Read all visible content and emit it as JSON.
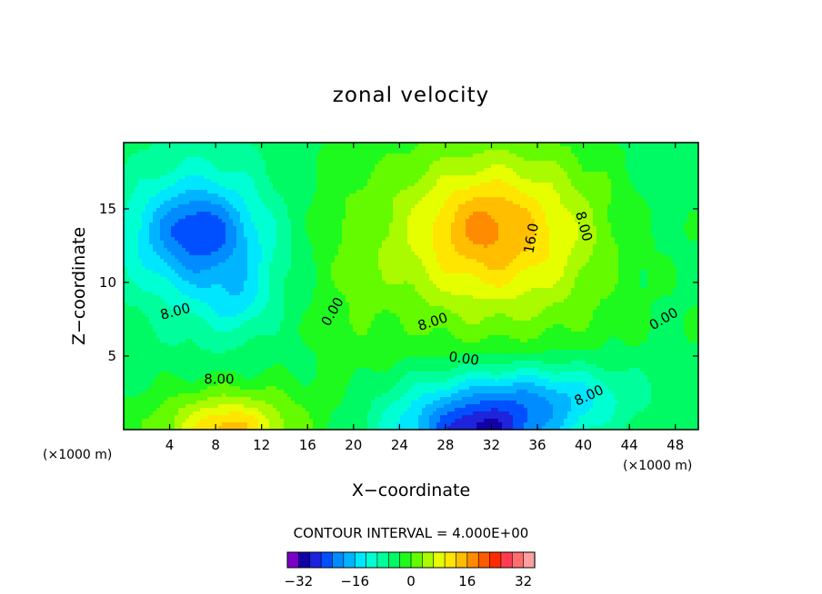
{
  "chart_data": {
    "type": "heatmap",
    "title": "zonal velocity",
    "xlabel": "X−coordinate",
    "ylabel": "Z−coordinate",
    "x_unit": "(×1000 m)",
    "z_unit": "(×1000 m)",
    "xlim": [
      0,
      50
    ],
    "ylim": [
      0,
      19.5
    ],
    "x_ticks": [
      4,
      8,
      12,
      16,
      20,
      24,
      28,
      32,
      36,
      40,
      44,
      48
    ],
    "x_tick_labels": [
      "4",
      "8",
      "12",
      "16",
      "20",
      "24",
      "28",
      "32",
      "36",
      "40",
      "44",
      "48"
    ],
    "y_ticks": [
      5,
      10,
      15
    ],
    "y_tick_labels": [
      "5",
      "10",
      "15"
    ],
    "contour_interval_text": "CONTOUR INTERVAL = 4.000E+00",
    "contour_interval": 4,
    "contour_labels": [
      {
        "text": "8.00",
        "x": 4.5,
        "z": 8.0,
        "angle": 15
      },
      {
        "text": "8.00",
        "x": 8.3,
        "z": 3.4,
        "angle": 0
      },
      {
        "text": "0.00",
        "x": 18.2,
        "z": 8.0,
        "angle": 60
      },
      {
        "text": "8.00",
        "x": 26.9,
        "z": 7.3,
        "angle": 18
      },
      {
        "text": "0.00",
        "x": 29.6,
        "z": 4.8,
        "angle": -8
      },
      {
        "text": "16.0",
        "x": 35.5,
        "z": 13.0,
        "angle": 80
      },
      {
        "text": "8.00",
        "x": 40.0,
        "z": 13.8,
        "angle": -75
      },
      {
        "text": "0.00",
        "x": 47.0,
        "z": 7.5,
        "angle": 30
      },
      {
        "text": "8.00",
        "x": 40.5,
        "z": 2.3,
        "angle": 25
      }
    ],
    "colorbar": {
      "min": -36,
      "max": 36,
      "step": 4,
      "tick_values": [
        -32,
        -16,
        0,
        16,
        32
      ],
      "tick_labels": [
        "−32",
        "−16",
        "0",
        "16",
        "32"
      ],
      "colors": [
        "#7a00c8",
        "#1200a8",
        "#1e24dc",
        "#0050ff",
        "#008cff",
        "#00b4ff",
        "#00e6ff",
        "#00ffd2",
        "#00ff9c",
        "#00fa64",
        "#1efa1e",
        "#64fa00",
        "#aafa00",
        "#e6ff00",
        "#ffe600",
        "#ffbe00",
        "#ff8c00",
        "#ff5a00",
        "#ff2a00",
        "#ff3c50",
        "#ff6e6e",
        "#ffa0a0"
      ]
    },
    "features": [
      {
        "x": 6,
        "z": 13.2,
        "amp": -18,
        "sx": 4.5,
        "sz": 3.0
      },
      {
        "x": 6.5,
        "z": 13.8,
        "amp": -6,
        "sx": 2.3,
        "sz": 1.5
      },
      {
        "x": 10,
        "z": 8.5,
        "amp": -5,
        "sx": 1.8,
        "sz": 1.2
      },
      {
        "x": 10,
        "z": 10.5,
        "amp": -4,
        "sx": 3.0,
        "sz": 2.5
      },
      {
        "x": 32,
        "z": 13.5,
        "amp": 17,
        "sx": 6.0,
        "sz": 3.8
      },
      {
        "x": 31.5,
        "z": 14.0,
        "amp": 4,
        "sx": 2.5,
        "sz": 1.8
      },
      {
        "x": 9,
        "z": 0.2,
        "amp": 20,
        "sx": 4.5,
        "sz": 2.0
      },
      {
        "x": 9,
        "z": 0.0,
        "amp": 6,
        "sx": 2.0,
        "sz": 0.8
      },
      {
        "x": 31,
        "z": 0.3,
        "amp": -26,
        "sx": 5.5,
        "sz": 2.2
      },
      {
        "x": 31,
        "z": 0.0,
        "amp": -6,
        "sx": 2.5,
        "sz": 0.8
      },
      {
        "x": 38,
        "z": 2.5,
        "amp": -10,
        "sx": 5.0,
        "sz": 1.5
      },
      {
        "x": 20,
        "z": 9,
        "amp": 2,
        "sx": 2.0,
        "sz": 8.0
      },
      {
        "x": 46,
        "z": 14,
        "amp": -3,
        "sx": 3.5,
        "sz": 6.0
      }
    ]
  }
}
